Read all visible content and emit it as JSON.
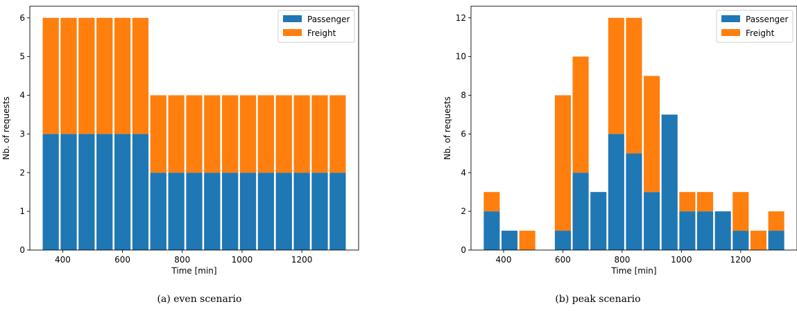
{
  "colors": {
    "passenger": "#1f77b4",
    "freight": "#ff7f0e"
  },
  "chart_data": [
    {
      "type": "bar",
      "stacked": true,
      "caption": "(a) even scenario",
      "xlabel": "Time [min]",
      "ylabel": "Nb. of requests",
      "xlim": [
        290,
        1390
      ],
      "ylim": [
        0,
        6.3
      ],
      "xticks": [
        400,
        600,
        800,
        1000,
        1200
      ],
      "yticks": [
        0,
        1,
        2,
        3,
        4,
        5,
        6
      ],
      "legend": "top-right",
      "bar_width": 54,
      "x": [
        360,
        420,
        480,
        540,
        600,
        660,
        720,
        780,
        840,
        900,
        960,
        1020,
        1080,
        1140,
        1200,
        1260,
        1320
      ],
      "series": [
        {
          "name": "Passenger",
          "values": [
            3,
            3,
            3,
            3,
            3,
            3,
            2,
            2,
            2,
            2,
            2,
            2,
            2,
            2,
            2,
            2,
            2
          ]
        },
        {
          "name": "Freight",
          "values": [
            3,
            3,
            3,
            3,
            3,
            3,
            2,
            2,
            2,
            2,
            2,
            2,
            2,
            2,
            2,
            2,
            2
          ]
        }
      ]
    },
    {
      "type": "bar",
      "stacked": true,
      "caption": "(b) peak scenario",
      "xlabel": "Time [min]",
      "ylabel": "Nb. of requests",
      "xlim": [
        290,
        1390
      ],
      "ylim": [
        0,
        12.6
      ],
      "xticks": [
        400,
        600,
        800,
        1000,
        1200
      ],
      "yticks": [
        0,
        2,
        4,
        6,
        8,
        10,
        12
      ],
      "legend": "top-right",
      "bar_width": 54,
      "x": [
        360,
        420,
        480,
        540,
        600,
        660,
        720,
        780,
        840,
        900,
        960,
        1020,
        1080,
        1140,
        1200,
        1260,
        1320
      ],
      "series": [
        {
          "name": "Passenger",
          "values": [
            2,
            1,
            0,
            0,
            1,
            4,
            3,
            6,
            5,
            3,
            7,
            2,
            2,
            2,
            1,
            0,
            1
          ]
        },
        {
          "name": "Freight",
          "values": [
            1,
            0,
            1,
            0,
            7,
            6,
            0,
            6,
            7,
            6,
            0,
            1,
            1,
            0,
            2,
            1,
            1
          ]
        }
      ]
    }
  ]
}
